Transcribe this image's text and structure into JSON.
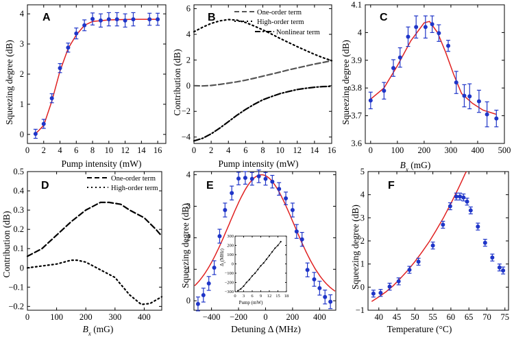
{
  "figure": {
    "label": "Six-panel squeezing figure"
  },
  "chart_data": [
    {
      "panel": "A",
      "type": "scatter",
      "xlabel": "Pump intensity (mW)",
      "ylabel": "Squeezing degree (dB)",
      "xlim": [
        0,
        17
      ],
      "ylim": [
        -0.3,
        4.3
      ],
      "xticks": [
        0,
        2,
        4,
        6,
        8,
        10,
        12,
        14,
        16
      ],
      "yticks": [
        0,
        1,
        2,
        3,
        4
      ],
      "points": [
        {
          "x": 1,
          "y": 0.02,
          "err": 0.15
        },
        {
          "x": 2,
          "y": 0.35,
          "err": 0.15
        },
        {
          "x": 3,
          "y": 1.2,
          "err": 0.15
        },
        {
          "x": 4,
          "y": 2.2,
          "err": 0.15
        },
        {
          "x": 5,
          "y": 2.88,
          "err": 0.15
        },
        {
          "x": 6,
          "y": 3.35,
          "err": 0.18
        },
        {
          "x": 7,
          "y": 3.62,
          "err": 0.18
        },
        {
          "x": 8,
          "y": 3.83,
          "err": 0.2
        },
        {
          "x": 9,
          "y": 3.78,
          "err": 0.22
        },
        {
          "x": 10,
          "y": 3.82,
          "err": 0.22
        },
        {
          "x": 11,
          "y": 3.82,
          "err": 0.22
        },
        {
          "x": 12,
          "y": 3.78,
          "err": 0.22
        },
        {
          "x": 13,
          "y": 3.82,
          "err": 0.22
        },
        {
          "x": 15,
          "y": 3.82,
          "err": 0.2
        },
        {
          "x": 16,
          "y": 3.82,
          "err": 0.2
        }
      ],
      "fit": [
        [
          1,
          0.02
        ],
        [
          2,
          0.3
        ],
        [
          3,
          1.1
        ],
        [
          4,
          2.1
        ],
        [
          5,
          2.85
        ],
        [
          6,
          3.3
        ],
        [
          7,
          3.62
        ],
        [
          8,
          3.75
        ],
        [
          10,
          3.8
        ],
        [
          13,
          3.82
        ],
        [
          16,
          3.82
        ]
      ]
    },
    {
      "panel": "B",
      "type": "line",
      "xlabel": "Pump intensity (mW)",
      "ylabel": "Contribution (dB)",
      "xlim": [
        0,
        16
      ],
      "ylim": [
        -4.5,
        6.3
      ],
      "xticks": [
        0,
        2,
        4,
        6,
        8,
        10,
        12,
        14,
        16
      ],
      "yticks": [
        -4,
        -2,
        0,
        2,
        4,
        6
      ],
      "series": [
        {
          "name": "One-order term",
          "style": "dashed",
          "color": "#555555",
          "x": [
            0,
            1,
            2,
            3,
            4,
            5,
            6,
            7,
            8,
            9,
            10,
            11,
            12,
            13,
            14,
            15,
            16
          ],
          "y": [
            0,
            -0.02,
            0.02,
            0.1,
            0.2,
            0.3,
            0.43,
            0.58,
            0.74,
            0.9,
            1.06,
            1.23,
            1.38,
            1.53,
            1.68,
            1.81,
            1.95
          ]
        },
        {
          "name": "High-order term",
          "style": "dotted",
          "color": "#000000",
          "x": [
            0,
            1,
            2,
            3,
            4,
            5,
            6,
            7,
            8,
            9,
            10,
            11,
            12,
            13,
            14,
            15,
            16
          ],
          "y": [
            4.2,
            4.55,
            4.85,
            5.05,
            5.15,
            5.1,
            4.92,
            4.65,
            4.35,
            4.02,
            3.68,
            3.36,
            3.04,
            2.74,
            2.44,
            2.18,
            1.95
          ]
        },
        {
          "name": "Nonlinear term",
          "style": "dashdot",
          "color": "#000000",
          "x": [
            0,
            1,
            2,
            3,
            4,
            5,
            6,
            7,
            8,
            9,
            10,
            11,
            12,
            13,
            14,
            15,
            16
          ],
          "y": [
            -4.3,
            -4.1,
            -3.75,
            -3.3,
            -2.8,
            -2.3,
            -1.85,
            -1.45,
            -1.1,
            -0.85,
            -0.62,
            -0.45,
            -0.3,
            -0.2,
            -0.12,
            -0.07,
            -0.05
          ]
        }
      ],
      "legend_position": "top-right"
    },
    {
      "panel": "C",
      "type": "scatter",
      "xlabel": "B_x (mG)",
      "ylabel": "Squeezing degree (dB)",
      "xlim": [
        -20,
        500
      ],
      "ylim": [
        3.6,
        4.1
      ],
      "xticks": [
        0,
        100,
        200,
        300,
        400,
        500
      ],
      "yticks": [
        3.6,
        3.7,
        3.8,
        3.9,
        4.0,
        4.1
      ],
      "points": [
        {
          "x": 0,
          "y": 3.755,
          "err": 0.03
        },
        {
          "x": 50,
          "y": 3.79,
          "err": 0.03
        },
        {
          "x": 85,
          "y": 3.872,
          "err": 0.03
        },
        {
          "x": 110,
          "y": 3.91,
          "err": 0.035
        },
        {
          "x": 140,
          "y": 3.985,
          "err": 0.035
        },
        {
          "x": 170,
          "y": 4.02,
          "err": 0.04
        },
        {
          "x": 205,
          "y": 4.02,
          "err": 0.04
        },
        {
          "x": 230,
          "y": 4.03,
          "err": 0.03
        },
        {
          "x": 255,
          "y": 3.998,
          "err": 0.03
        },
        {
          "x": 290,
          "y": 3.952,
          "err": 0.02
        },
        {
          "x": 320,
          "y": 3.82,
          "err": 0.04
        },
        {
          "x": 350,
          "y": 3.772,
          "err": 0.04
        },
        {
          "x": 370,
          "y": 3.77,
          "err": 0.045
        },
        {
          "x": 405,
          "y": 3.752,
          "err": 0.04
        },
        {
          "x": 435,
          "y": 3.705,
          "err": 0.045
        },
        {
          "x": 470,
          "y": 3.69,
          "err": 0.03
        }
      ],
      "fit": [
        [
          0,
          3.76
        ],
        [
          50,
          3.8
        ],
        [
          100,
          3.88
        ],
        [
          150,
          3.97
        ],
        [
          200,
          4.035
        ],
        [
          220,
          4.04
        ],
        [
          250,
          4.0
        ],
        [
          280,
          3.93
        ],
        [
          310,
          3.85
        ],
        [
          340,
          3.78
        ],
        [
          380,
          3.745
        ],
        [
          420,
          3.72
        ],
        [
          470,
          3.705
        ]
      ]
    },
    {
      "panel": "D",
      "type": "line",
      "xlabel": "B_x (mG)",
      "ylabel": "Contribution (dB)",
      "xlim": [
        0,
        460
      ],
      "ylim": [
        -0.22,
        0.5
      ],
      "xticks": [
        0,
        100,
        200,
        300,
        400
      ],
      "yticks": [
        -0.2,
        -0.1,
        0,
        0.1,
        0.2,
        0.3,
        0.4,
        0.5
      ],
      "series": [
        {
          "name": "One-order term",
          "style": "dashed",
          "color": "#000000",
          "x": [
            0,
            50,
            100,
            150,
            200,
            250,
            280,
            320,
            350,
            400,
            440,
            460
          ],
          "y": [
            0.06,
            0.1,
            0.17,
            0.24,
            0.3,
            0.34,
            0.34,
            0.33,
            0.3,
            0.26,
            0.2,
            0.165
          ]
        },
        {
          "name": "High-order term",
          "style": "dotted",
          "color": "#000000",
          "x": [
            0,
            50,
            100,
            150,
            170,
            200,
            250,
            300,
            350,
            390,
            420,
            460
          ],
          "y": [
            0.0,
            0.01,
            0.02,
            0.04,
            0.04,
            0.03,
            -0.01,
            -0.05,
            -0.14,
            -0.19,
            -0.185,
            -0.15
          ]
        }
      ],
      "legend_position": "top-right"
    },
    {
      "panel": "E",
      "type": "scatter",
      "xlabel": "Detuning Δ (MHz)",
      "ylabel": "Squeezing degree (dB)",
      "xlim": [
        -530,
        520
      ],
      "ylim": [
        -0.3,
        4.1
      ],
      "xticks": [
        -400,
        -200,
        0,
        200,
        400
      ],
      "yticks": [
        0,
        1,
        2,
        3,
        4
      ],
      "points": [
        {
          "x": -500,
          "y": -0.1,
          "err": 0.22
        },
        {
          "x": -460,
          "y": 0.18,
          "err": 0.22
        },
        {
          "x": -420,
          "y": 0.55,
          "err": 0.22
        },
        {
          "x": -380,
          "y": 1.05,
          "err": 0.22
        },
        {
          "x": -340,
          "y": 2.05,
          "err": 0.22
        },
        {
          "x": -300,
          "y": 2.88,
          "err": 0.22
        },
        {
          "x": -250,
          "y": 3.42,
          "err": 0.22
        },
        {
          "x": -200,
          "y": 3.88,
          "err": 0.2
        },
        {
          "x": -150,
          "y": 3.9,
          "err": 0.2
        },
        {
          "x": -100,
          "y": 3.87,
          "err": 0.2
        },
        {
          "x": -50,
          "y": 3.95,
          "err": 0.2
        },
        {
          "x": 0,
          "y": 3.87,
          "err": 0.2
        },
        {
          "x": 50,
          "y": 3.78,
          "err": 0.2
        },
        {
          "x": 100,
          "y": 3.55,
          "err": 0.2
        },
        {
          "x": 150,
          "y": 3.25,
          "err": 0.2
        },
        {
          "x": 200,
          "y": 2.88,
          "err": 0.22
        },
        {
          "x": 230,
          "y": 2.2,
          "err": 0.22
        },
        {
          "x": 270,
          "y": 1.95,
          "err": 0.22
        },
        {
          "x": 310,
          "y": 0.98,
          "err": 0.22
        },
        {
          "x": 360,
          "y": 0.68,
          "err": 0.22
        },
        {
          "x": 400,
          "y": 0.4,
          "err": 0.22
        },
        {
          "x": 440,
          "y": 0.12,
          "err": 0.22
        },
        {
          "x": 480,
          "y": -0.03,
          "err": 0.22
        }
      ],
      "fit_center": -30,
      "fit_amp": 4.0,
      "fit_sigma": 240,
      "inset": {
        "xlabel": "Pump (mW)",
        "ylabel": "Δ_c (MHz)",
        "xlim": [
          0,
          18
        ],
        "ylim": [
          -300,
          300
        ],
        "xticks": [
          0,
          3,
          6,
          9,
          12,
          15,
          18
        ],
        "yticks": [
          -300,
          -200,
          -100,
          0,
          100,
          200,
          300
        ],
        "x": [
          1,
          2,
          3,
          4,
          5,
          6,
          7,
          8,
          9,
          10,
          11,
          12,
          13,
          14,
          15,
          16
        ],
        "y": [
          -290,
          -270,
          -240,
          -200,
          -170,
          -130,
          -100,
          -60,
          -20,
          10,
          50,
          90,
          130,
          170,
          200,
          240
        ]
      }
    },
    {
      "panel": "F",
      "type": "scatter",
      "xlabel": "Temperature (°C)",
      "ylabel": "Squeezing degree (dB)",
      "xlim": [
        37,
        76
      ],
      "ylim": [
        -1,
        5
      ],
      "xticks": [
        40,
        45,
        50,
        55,
        60,
        65,
        70,
        75
      ],
      "yticks": [
        -1,
        0,
        1,
        2,
        3,
        4,
        5
      ],
      "points": [
        {
          "x": 38.5,
          "y": -0.28,
          "err": 0.15
        },
        {
          "x": 40.5,
          "y": -0.25,
          "err": 0.15
        },
        {
          "x": 43,
          "y": 0.02,
          "err": 0.15
        },
        {
          "x": 45.5,
          "y": 0.25,
          "err": 0.15
        },
        {
          "x": 48.5,
          "y": 0.75,
          "err": 0.15
        },
        {
          "x": 51,
          "y": 1.1,
          "err": 0.15
        },
        {
          "x": 55,
          "y": 1.8,
          "err": 0.15
        },
        {
          "x": 57.8,
          "y": 2.7,
          "err": 0.15
        },
        {
          "x": 59.8,
          "y": 3.5,
          "err": 0.15
        },
        {
          "x": 61.5,
          "y": 3.92,
          "err": 0.15
        },
        {
          "x": 62.5,
          "y": 3.92,
          "err": 0.15
        },
        {
          "x": 63.5,
          "y": 3.88,
          "err": 0.15
        },
        {
          "x": 64.5,
          "y": 3.7,
          "err": 0.15
        },
        {
          "x": 65.5,
          "y": 3.32,
          "err": 0.15
        },
        {
          "x": 67.5,
          "y": 2.62,
          "err": 0.15
        },
        {
          "x": 69.5,
          "y": 1.92,
          "err": 0.15
        },
        {
          "x": 71.5,
          "y": 1.28,
          "err": 0.15
        },
        {
          "x": 73.5,
          "y": 0.85,
          "err": 0.15
        },
        {
          "x": 74.5,
          "y": 0.72,
          "err": 0.15
        }
      ],
      "fit": [
        [
          38,
          -0.62
        ],
        [
          40,
          -0.42
        ],
        [
          42,
          -0.2
        ],
        [
          44,
          0.06
        ],
        [
          46,
          0.38
        ],
        [
          48,
          0.72
        ],
        [
          50,
          1.1
        ],
        [
          52,
          1.52
        ],
        [
          54,
          1.97
        ],
        [
          56,
          2.48
        ],
        [
          58,
          3.02
        ],
        [
          60,
          3.62
        ],
        [
          62,
          4.25
        ],
        [
          63,
          4.58
        ],
        [
          64,
          4.92
        ],
        [
          64.3,
          5.0
        ]
      ]
    }
  ],
  "legendB": {
    "one": "One-order term",
    "high": "High-order term",
    "nonlin": "Nonlinear term"
  },
  "legendD": {
    "one": "One-order term",
    "high": "High-order term"
  },
  "labels": {
    "pA": "A",
    "pB": "B",
    "pC": "C",
    "pD": "D",
    "pE": "E",
    "pF": "F",
    "xA": "Pump intensity (mW)",
    "yA": "Squeezing degree (dB)",
    "xB": "Pump intensity (mW)",
    "yB": "Contribution (dB)",
    "xC_main": "B",
    "xC_sub": "x",
    "xC_unit": " (mG)",
    "yC": "Squeezing degree (dB)",
    "xD_main": "B",
    "xD_sub": "x",
    "xD_unit": " (mG)",
    "yD": "Contribution (dB)",
    "xE": "Detuning Δ (MHz)",
    "yE": "Squeezing degree (dB)",
    "xF": "Temperature (°C)",
    "yF": "Squeezing degree (dB)",
    "inset_x": "Pump (mW)",
    "inset_y_main": "Δ",
    "inset_y_sub": "c",
    "inset_y_unit": "(MHz)"
  }
}
